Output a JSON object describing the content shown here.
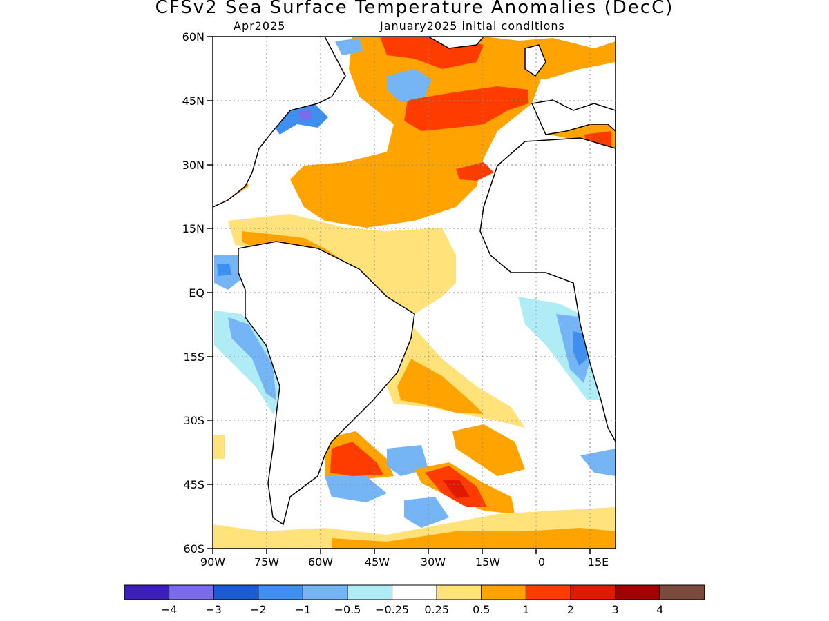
{
  "title": "CFSv2 Sea Surface Temperature Anomalies (DecC)",
  "subtitle_left": "Apr2025",
  "subtitle_right": "January2025 initial conditions",
  "y_axis_labels": [
    "60N",
    "45N",
    "30N",
    "15N",
    "EQ",
    "15S",
    "30S",
    "45S",
    "60S"
  ],
  "x_axis_labels": [
    "90W",
    "75W",
    "60W",
    "45W",
    "30W",
    "15W",
    "0",
    "15E"
  ],
  "colorbar": {
    "colors": [
      "#3c1fb8",
      "#7b6be6",
      "#1a5dd0",
      "#3f8ff0",
      "#75b4f5",
      "#b0ecf5",
      "#ffffff",
      "#ffe27a",
      "#ffa300",
      "#ff3c00",
      "#e01a00",
      "#a00000",
      "#7a4a3c"
    ],
    "labels": [
      "−4",
      "−3",
      "−2",
      "−1",
      "−0.5",
      "−0.25",
      "0.25",
      "0.5",
      "1",
      "2",
      "3",
      "4"
    ]
  }
}
